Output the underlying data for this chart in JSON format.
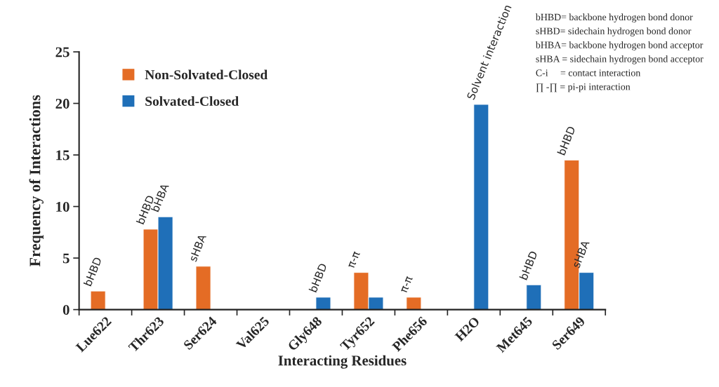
{
  "chart_data": {
    "type": "bar",
    "xlabel": "Interacting Residues",
    "ylabel": "Frequency of Interactions",
    "categories": [
      "Lue622",
      "Thr623",
      "Ser624",
      "Val625",
      "Gly648",
      "Tyr652",
      "Phe656",
      "H2O",
      "Met645",
      "Ser649"
    ],
    "series": [
      {
        "name": "Non-Solvated-Closed",
        "color": "#e46c25",
        "values": [
          1.8,
          7.8,
          4.2,
          null,
          null,
          3.6,
          1.2,
          null,
          null,
          14.5
        ]
      },
      {
        "name": "Solvated-Closed",
        "color": "#1f6fb8",
        "values": [
          null,
          9,
          null,
          null,
          1.2,
          1.2,
          null,
          19.9,
          2.4,
          3.6
        ]
      }
    ],
    "ylim": [
      0,
      25
    ],
    "yticks": [
      0,
      5,
      10,
      15,
      20,
      25
    ],
    "grid": false,
    "legend": "top left",
    "annotations": [
      {
        "text": "bHBD",
        "x": "Lue622",
        "y": 1.8
      },
      {
        "text": "bHBD",
        "x": "Thr623",
        "y": 7.8
      },
      {
        "text": "bHBA",
        "x": "Thr623",
        "y": 9
      },
      {
        "text": "sHBA",
        "x": "Ser624",
        "y": 4.2
      },
      {
        "text": "bHBD",
        "x": "Gly648",
        "y": 1.2
      },
      {
        "text": "π-π",
        "x": "Tyr652",
        "y": 3.6
      },
      {
        "text": "π-π",
        "x": "Phe656",
        "y": 1.2
      },
      {
        "text": "Solvent interaction",
        "x": "H2O",
        "y": 19.9
      },
      {
        "text": "bHBD",
        "x": "Met645",
        "y": 2.4
      },
      {
        "text": "bHBD",
        "x": "Ser649",
        "y": 14.5
      },
      {
        "text": "sHBA",
        "x": "Ser649",
        "y": 3.6
      },
      "bHBD= backbone hydrogen bond donor",
      "sHBD= sidechain hydrogen bond donor",
      "bHBA= backbone hydrogen bond acceptor",
      "sHBA = sidechain hydrogen bond acceptor",
      "C-i     = contact interaction",
      "∏ -∏ = pi-pi interaction"
    ]
  }
}
